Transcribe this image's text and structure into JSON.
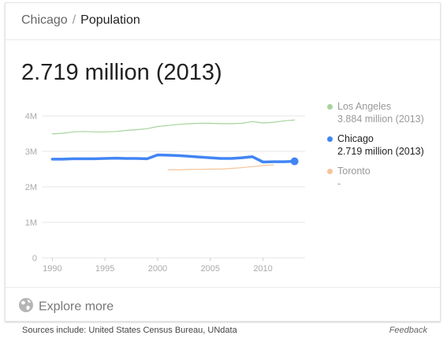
{
  "breadcrumb": {
    "city": "Chicago",
    "separator": "/",
    "topic": "Population"
  },
  "headline": "2.719 million (2013)",
  "chart_data": {
    "type": "line",
    "title": "",
    "xlabel": "",
    "ylabel": "",
    "xlim": [
      1989,
      2014
    ],
    "ylim": [
      0,
      4200000
    ],
    "x_ticks": [
      "1990",
      "1995",
      "2000",
      "2005",
      "2010"
    ],
    "y_ticks": [
      {
        "value": 0,
        "label": "0"
      },
      {
        "value": 1000000,
        "label": "1M"
      },
      {
        "value": 2000000,
        "label": "2M"
      },
      {
        "value": 3000000,
        "label": "3M"
      },
      {
        "value": 4000000,
        "label": "4M"
      }
    ],
    "grid": true,
    "legend_position": "right",
    "series": [
      {
        "name": "Los Angeles",
        "label_value": "3.884 million (2013)",
        "color": "#a6d49c",
        "width": 1.2,
        "x": [
          1990,
          1991,
          1992,
          1993,
          1994,
          1995,
          1996,
          1997,
          1998,
          1999,
          2000,
          2001,
          2002,
          2003,
          2004,
          2005,
          2006,
          2007,
          2008,
          2009,
          2010,
          2011,
          2012,
          2013
        ],
        "y": [
          3490000,
          3510000,
          3550000,
          3560000,
          3550000,
          3550000,
          3560000,
          3590000,
          3610000,
          3640000,
          3700000,
          3730000,
          3760000,
          3780000,
          3790000,
          3790000,
          3780000,
          3780000,
          3790000,
          3840000,
          3800000,
          3820000,
          3860000,
          3884000
        ]
      },
      {
        "name": "Chicago",
        "label_value": "2.719 million (2013)",
        "color": "#4285f4",
        "width": 3.5,
        "x": [
          1990,
          1991,
          1992,
          1993,
          1994,
          1995,
          1996,
          1997,
          1998,
          1999,
          2000,
          2001,
          2002,
          2003,
          2004,
          2005,
          2006,
          2007,
          2008,
          2009,
          2010,
          2011,
          2012,
          2013
        ],
        "y": [
          2780000,
          2780000,
          2790000,
          2790000,
          2790000,
          2800000,
          2810000,
          2800000,
          2800000,
          2790000,
          2900000,
          2890000,
          2880000,
          2860000,
          2840000,
          2820000,
          2800000,
          2800000,
          2820000,
          2850000,
          2700000,
          2710000,
          2710000,
          2719000
        ],
        "end_marker": true
      },
      {
        "name": "Toronto",
        "label_value": "-",
        "color": "#f6c49a",
        "width": 1.2,
        "x": [
          2001,
          2002,
          2003,
          2004,
          2005,
          2006,
          2007,
          2008,
          2009,
          2010,
          2011
        ],
        "y": [
          2480000,
          2480000,
          2490000,
          2490000,
          2500000,
          2500000,
          2520000,
          2540000,
          2570000,
          2600000,
          2620000
        ]
      }
    ]
  },
  "legend": [
    {
      "name": "Los Angeles",
      "value": "3.884 million (2013)",
      "color": "#a6d49c"
    },
    {
      "name": "Chicago",
      "value": "2.719 million (2013)",
      "color": "#4285f4"
    },
    {
      "name": "Toronto",
      "value": "-",
      "color": "#f6c49a"
    }
  ],
  "explore": {
    "label": "Explore more",
    "icon": "globe-icon"
  },
  "footer": {
    "sources": "Sources include: United States Census Bureau, UNdata",
    "feedback": "Feedback"
  },
  "colors": {
    "grid": "#e6e6e6",
    "axis_text": "#aaaaaa"
  }
}
